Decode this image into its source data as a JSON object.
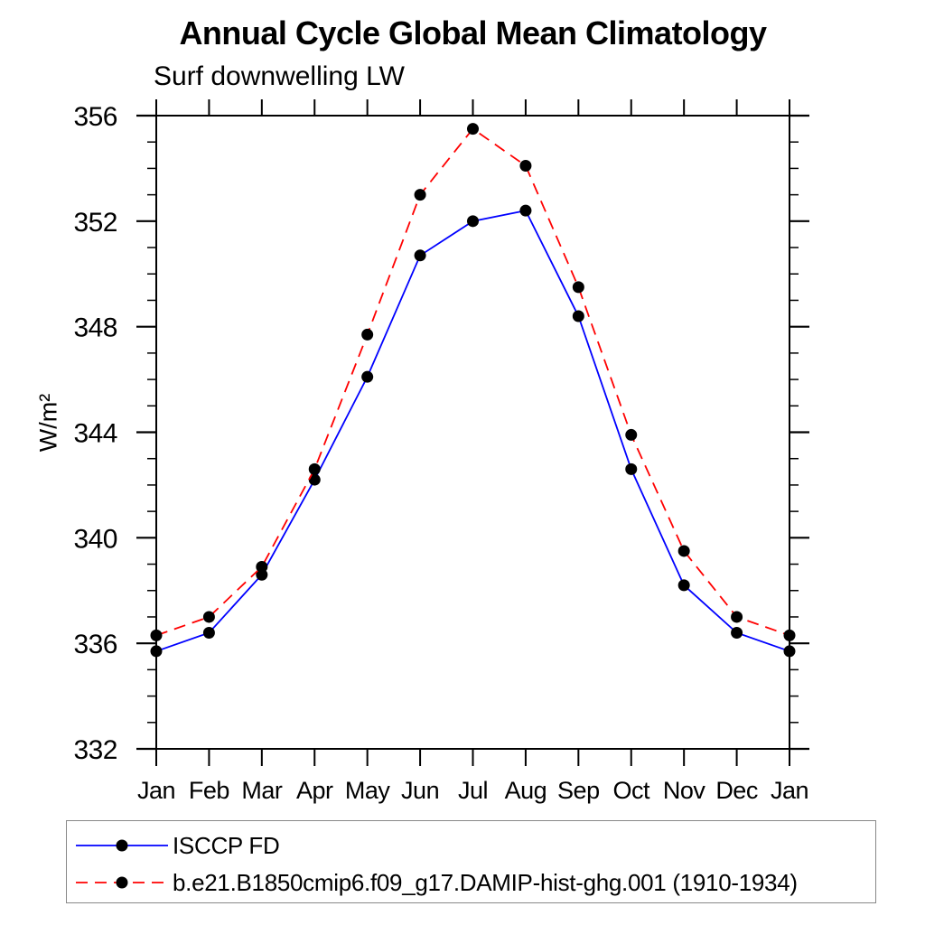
{
  "header": {
    "title": "Annual Cycle Global Mean Climatology",
    "subtitle": "Surf downwelling LW"
  },
  "chart_data": {
    "type": "line",
    "title": "Annual Cycle Global Mean Climatology",
    "subtitle": "Surf downwelling LW",
    "xlabel": "",
    "ylabel": "W/m²",
    "categories": [
      "Jan",
      "Feb",
      "Mar",
      "Apr",
      "May",
      "Jun",
      "Jul",
      "Aug",
      "Sep",
      "Oct",
      "Nov",
      "Dec",
      "Jan"
    ],
    "ylim": [
      332,
      356
    ],
    "ytick_major_interval": 4,
    "ytick_minor_interval": 1,
    "ytick_labels": [
      "332",
      "336",
      "340",
      "344",
      "348",
      "352",
      "356"
    ],
    "grid": false,
    "frame": "boxed-with-outward-ticks",
    "legend_position": "bottom-left-box",
    "marker": {
      "shape": "filled-circle",
      "color": "#000000",
      "radius": 6.5
    },
    "series": [
      {
        "name": "ISCCP FD",
        "color": "#0000ff",
        "line_style": "solid",
        "values": [
          335.7,
          336.4,
          338.6,
          342.2,
          346.1,
          350.7,
          352.0,
          352.4,
          348.4,
          342.6,
          338.2,
          336.4,
          335.7
        ]
      },
      {
        "name": "b.e21.B1850cmip6.f09_g17.DAMIP-hist-ghg.001 (1910-1934)",
        "color": "#ff0000",
        "line_style": "dashed",
        "values": [
          336.3,
          337.0,
          338.9,
          342.6,
          347.7,
          353.0,
          355.5,
          354.1,
          349.5,
          343.9,
          339.5,
          337.0,
          336.3
        ]
      }
    ]
  },
  "colors": {
    "axis": "#000000",
    "text": "#000000",
    "legend_border": "#888888",
    "background": "#ffffff"
  }
}
